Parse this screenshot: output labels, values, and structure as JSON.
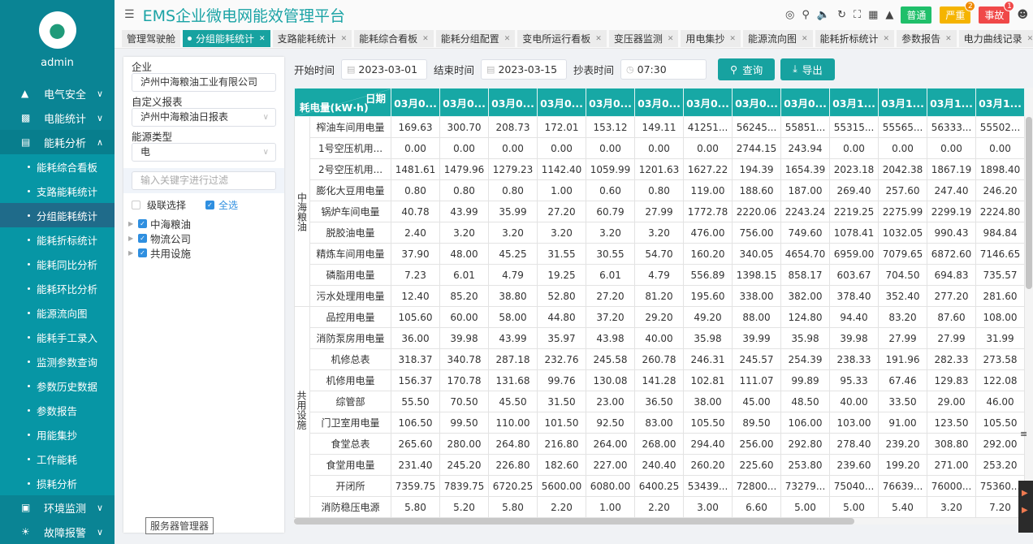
{
  "user": {
    "name": "admin"
  },
  "sidebar": {
    "top_items": [
      {
        "label": "电气安全",
        "icon": "alarm-light-icon"
      },
      {
        "label": "电能统计",
        "icon": "bar-chart-icon"
      },
      {
        "label": "能耗分析",
        "icon": "area-chart-icon"
      }
    ],
    "sub_items": [
      "能耗综合看板",
      "支路能耗统计",
      "分组能耗统计",
      "能耗折标统计",
      "能耗同比分析",
      "能耗环比分析",
      "能源流向图",
      "能耗手工录入",
      "监测参数查询",
      "参数历史数据",
      "参数报告",
      "用能集抄",
      "工作能耗",
      "损耗分析"
    ],
    "active_sub": "分组能耗统计",
    "bottom_items": [
      {
        "label": "环境监测",
        "icon": "camera-icon"
      },
      {
        "label": "故障报警",
        "icon": "alarm-icon"
      }
    ]
  },
  "header": {
    "title": "EMS企业微电网能效管理平台",
    "badges": [
      {
        "label": "普通",
        "color": "#1fbf6a"
      },
      {
        "label": "严重",
        "color": "#f5b400",
        "count": "2"
      },
      {
        "label": "事故",
        "color": "#f04848",
        "count": "1"
      }
    ]
  },
  "tabs": [
    {
      "label": "管理驾驶舱",
      "closable": false
    },
    {
      "label": "分组能耗统计",
      "active": true
    },
    {
      "label": "支路能耗统计"
    },
    {
      "label": "能耗综合看板"
    },
    {
      "label": "能耗分组配置"
    },
    {
      "label": "变电所运行看板"
    },
    {
      "label": "变压器监测"
    },
    {
      "label": "用电集抄"
    },
    {
      "label": "能源流向图"
    },
    {
      "label": "能耗折标统计"
    },
    {
      "label": "参数报告"
    },
    {
      "label": "电力曲线记录"
    }
  ],
  "panel": {
    "company_label": "企业",
    "company_value": "泸州中海粮油工业有限公司",
    "report_label": "自定义报表",
    "report_value": "泸州中海粮油日报表",
    "energy_label": "能源类型",
    "energy_value": "电",
    "filter_placeholder": "输入关键字进行过滤",
    "cascade_label": "级联选择",
    "select_all_label": "全选",
    "tree": [
      "中海粮油",
      "物流公司",
      "共用设施"
    ]
  },
  "tooltip": "服务器管理器",
  "query": {
    "start_label": "开始时间",
    "start_value": "2023-03-01",
    "end_label": "结束时间",
    "end_value": "2023-03-15",
    "read_label": "抄表时间",
    "read_value": "07:30",
    "search_label": "查询",
    "export_label": "导出"
  },
  "table": {
    "corner_top": "日期",
    "corner_bottom": "耗电量(kW·h)",
    "columns": [
      "03月0...",
      "03月0...",
      "03月0...",
      "03月0...",
      "03月0...",
      "03月0...",
      "03月0...",
      "03月0...",
      "03月0...",
      "03月1...",
      "03月1...",
      "03月1...",
      "03月1..."
    ],
    "groups": [
      {
        "name": "中海粮油",
        "rows": [
          {
            "name": "榨油车间用电量",
            "values": [
              "169.63",
              "300.70",
              "208.73",
              "172.01",
              "153.12",
              "149.11",
              "41251...",
              "56245...",
              "55851...",
              "55315...",
              "55565...",
              "56333...",
              "55502..."
            ]
          },
          {
            "name": "1号空压机用...",
            "values": [
              "0.00",
              "0.00",
              "0.00",
              "0.00",
              "0.00",
              "0.00",
              "0.00",
              "2744.15",
              "243.94",
              "0.00",
              "0.00",
              "0.00",
              "0.00"
            ]
          },
          {
            "name": "2号空压机用...",
            "values": [
              "1481.61",
              "1479.96",
              "1279.23",
              "1142.40",
              "1059.99",
              "1201.63",
              "1627.22",
              "194.39",
              "1654.39",
              "2023.18",
              "2042.38",
              "1867.19",
              "1898.40"
            ]
          },
          {
            "name": "膨化大豆用电量",
            "values": [
              "0.80",
              "0.80",
              "0.80",
              "1.00",
              "0.60",
              "0.80",
              "119.00",
              "188.60",
              "187.00",
              "269.40",
              "257.60",
              "247.40",
              "246.20"
            ]
          },
          {
            "name": "锅炉车间电量",
            "values": [
              "40.78",
              "43.99",
              "35.99",
              "27.20",
              "60.79",
              "27.99",
              "1772.78",
              "2220.06",
              "2243.24",
              "2219.25",
              "2275.99",
              "2299.19",
              "2224.80"
            ]
          },
          {
            "name": "脱胶油电量",
            "values": [
              "2.40",
              "3.20",
              "3.20",
              "3.20",
              "3.20",
              "3.20",
              "476.00",
              "756.00",
              "749.60",
              "1078.41",
              "1032.05",
              "990.43",
              "984.84"
            ]
          },
          {
            "name": "精炼车间用电量",
            "values": [
              "37.90",
              "48.00",
              "45.25",
              "31.55",
              "30.55",
              "54.70",
              "160.20",
              "340.05",
              "4654.70",
              "6959.00",
              "7079.65",
              "6872.60",
              "7146.65"
            ]
          },
          {
            "name": "磷脂用电量",
            "values": [
              "7.23",
              "6.01",
              "4.79",
              "19.25",
              "6.01",
              "4.79",
              "556.89",
              "1398.15",
              "858.17",
              "603.67",
              "704.50",
              "694.83",
              "735.57"
            ]
          },
          {
            "name": "污水处理用电量",
            "values": [
              "12.40",
              "85.20",
              "38.80",
              "52.80",
              "27.20",
              "81.20",
              "195.60",
              "338.00",
              "382.00",
              "378.40",
              "352.40",
              "277.20",
              "281.60"
            ]
          }
        ]
      },
      {
        "name": "共用设施",
        "rows": [
          {
            "name": "品控用电量",
            "values": [
              "105.60",
              "60.00",
              "58.00",
              "44.80",
              "37.20",
              "29.20",
              "49.20",
              "88.00",
              "124.80",
              "94.40",
              "83.20",
              "87.60",
              "108.00"
            ]
          },
          {
            "name": "消防泵房用电量",
            "values": [
              "36.00",
              "39.98",
              "43.99",
              "35.97",
              "43.98",
              "40.00",
              "35.98",
              "39.99",
              "35.98",
              "39.98",
              "27.99",
              "27.99",
              "31.99"
            ]
          },
          {
            "name": "机修总表",
            "values": [
              "318.37",
              "340.78",
              "287.18",
              "232.76",
              "245.58",
              "260.78",
              "246.31",
              "245.57",
              "254.39",
              "238.33",
              "191.96",
              "282.33",
              "273.58"
            ]
          },
          {
            "name": "机修用电量",
            "values": [
              "156.37",
              "170.78",
              "131.68",
              "99.76",
              "130.08",
              "141.28",
              "102.81",
              "111.07",
              "99.89",
              "95.33",
              "67.46",
              "129.83",
              "122.08"
            ]
          },
          {
            "name": "综管部",
            "values": [
              "55.50",
              "70.50",
              "45.50",
              "31.50",
              "23.00",
              "36.50",
              "38.00",
              "45.00",
              "48.50",
              "40.00",
              "33.50",
              "29.00",
              "46.00"
            ]
          },
          {
            "name": "门卫室用电量",
            "values": [
              "106.50",
              "99.50",
              "110.00",
              "101.50",
              "92.50",
              "83.00",
              "105.50",
              "89.50",
              "106.00",
              "103.00",
              "91.00",
              "123.50",
              "105.50"
            ]
          },
          {
            "name": "食堂总表",
            "values": [
              "265.60",
              "280.00",
              "264.80",
              "216.80",
              "264.00",
              "268.00",
              "294.40",
              "256.00",
              "292.80",
              "278.40",
              "239.20",
              "308.80",
              "292.00"
            ]
          },
          {
            "name": "食堂用电量",
            "values": [
              "231.40",
              "245.20",
              "226.80",
              "182.60",
              "227.00",
              "240.40",
              "260.20",
              "225.60",
              "253.80",
              "239.60",
              "199.20",
              "271.00",
              "253.20"
            ]
          },
          {
            "name": "开闭所",
            "values": [
              "7359.75",
              "7839.75",
              "6720.25",
              "5600.00",
              "6080.00",
              "6400.25",
              "53439...",
              "72800...",
              "73279...",
              "75040...",
              "76639...",
              "76000...",
              "75360..."
            ]
          },
          {
            "name": "消防稳压电源",
            "values": [
              "5.80",
              "5.20",
              "5.80",
              "2.20",
              "1.00",
              "2.20",
              "3.00",
              "6.60",
              "5.00",
              "5.00",
              "5.40",
              "3.20",
              "7.20"
            ]
          }
        ]
      }
    ]
  }
}
